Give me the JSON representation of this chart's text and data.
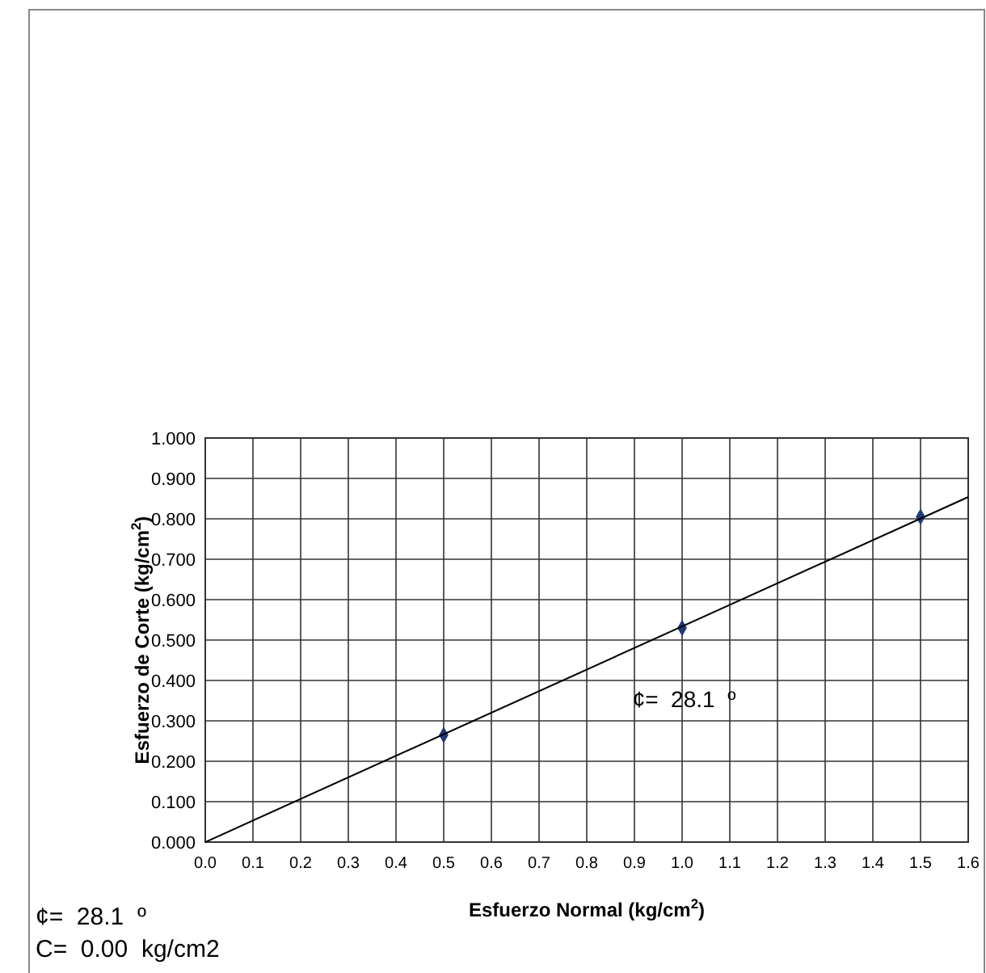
{
  "chart_data": {
    "type": "scatter",
    "xlabel": "Esfuerzo Normal (kg/cm$^{2}$)",
    "ylabel": "Esfuerzo de Corte (kg/cm$^{2}$)",
    "xlim": [
      0,
      1.6
    ],
    "ylim": [
      0,
      1
    ],
    "xticks": [
      {
        "value": 0,
        "label": "0.0"
      },
      0.1,
      0.2,
      0.3,
      0.4,
      0.5,
      0.6,
      0.7,
      0.8,
      0.9,
      {
        "value": 1,
        "label": "1.0"
      },
      1.1,
      1.2,
      1.3,
      1.4,
      1.5,
      1.6
    ],
    "yticks": [
      {
        "value": 0,
        "label": "0.000"
      },
      {
        "value": 0.1,
        "label": "0.100"
      },
      {
        "value": 0.2,
        "label": "0.200"
      },
      {
        "value": 0.3,
        "label": "0.300"
      },
      {
        "value": 0.4,
        "label": "0.400"
      },
      {
        "value": 0.5,
        "label": "0.500"
      },
      {
        "value": 0.6,
        "label": "0.600"
      },
      {
        "value": 0.7,
        "label": "0.700"
      },
      {
        "value": 0.8,
        "label": "0.800"
      },
      {
        "value": 0.9,
        "label": "0.900"
      },
      {
        "value": 1,
        "label": "1.000"
      }
    ],
    "grid": true,
    "marker": "diamond",
    "series": [
      {
        "color": "#1f3a7a",
        "x": [
          0.5,
          1.0,
          1.5
        ],
        "values": [
          0.265,
          0.53,
          0.805
        ]
      },
      {
        "type": "line",
        "color": "#000000",
        "x": [
          0,
          1.6
        ],
        "values": [
          0,
          0.854
        ],
        "marker": "none"
      }
    ],
    "annotations": [
      "¢=  28.1  º",
      "¢=  28.1  º",
      "C=  0.00  kg/cm2"
    ]
  }
}
